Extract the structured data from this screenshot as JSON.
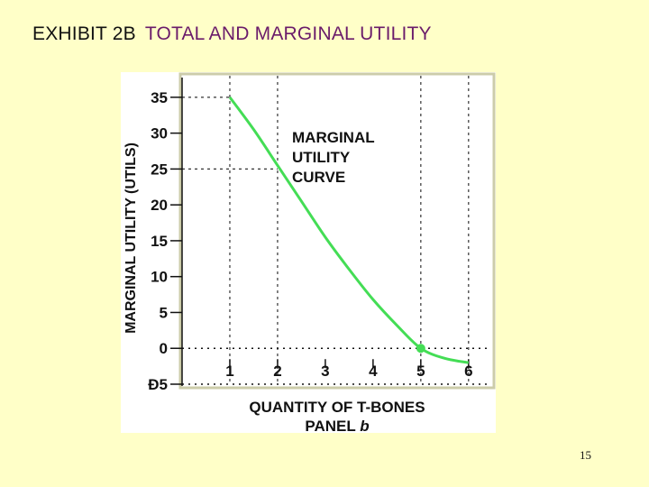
{
  "slide": {
    "title_prefix": "EXHIBIT 2B",
    "title_main": "TOTAL AND MARGINAL UTILITY",
    "page_number": "15"
  },
  "chart_data": {
    "type": "line",
    "ylabel": "MARGINAL UTILITY (UTILS)",
    "xlabel": "QUANTITY OF T-BONES",
    "panel_label_prefix": "PANEL",
    "panel_label_letter": "b",
    "annotation_lines": [
      "MARGINAL",
      "UTILITY",
      "CURVE"
    ],
    "y_ticks": [
      {
        "value": 35,
        "label": "35"
      },
      {
        "value": 30,
        "label": "30"
      },
      {
        "value": 25,
        "label": "25"
      },
      {
        "value": 20,
        "label": "20"
      },
      {
        "value": 15,
        "label": "15"
      },
      {
        "value": 10,
        "label": "10"
      },
      {
        "value": 5,
        "label": "5"
      },
      {
        "value": 0,
        "label": "0"
      },
      {
        "value": -5,
        "label": "Ð5"
      }
    ],
    "x_ticks": [
      {
        "value": 1,
        "label": "1"
      },
      {
        "value": 2,
        "label": "2"
      },
      {
        "value": 3,
        "label": "3"
      },
      {
        "value": 4,
        "label": "4"
      },
      {
        "value": 5,
        "label": "5"
      },
      {
        "value": 6,
        "label": "6"
      }
    ],
    "xlim": [
      0,
      6.4
    ],
    "ylim": [
      -5,
      38
    ],
    "curve": {
      "color": "#44dd55",
      "x": [
        1,
        1.5,
        2,
        2.5,
        3,
        3.5,
        4,
        4.5,
        5,
        5.5,
        6
      ],
      "y": [
        35,
        30.5,
        25.5,
        20.5,
        15.5,
        11,
        6.8,
        3.2,
        0,
        -1.4,
        -2
      ]
    },
    "highlight_point": {
      "x": 5,
      "y": 0
    },
    "reference_lines": [
      {
        "x": 1,
        "y": 35
      },
      {
        "x": 2,
        "y": 25
      },
      {
        "x": 5,
        "y": 0
      },
      {
        "x": 6,
        "y": -2
      }
    ],
    "grid": false,
    "colors": {
      "curve": "#44dd55",
      "frame": "#ccccaa",
      "text": "#111111"
    }
  }
}
